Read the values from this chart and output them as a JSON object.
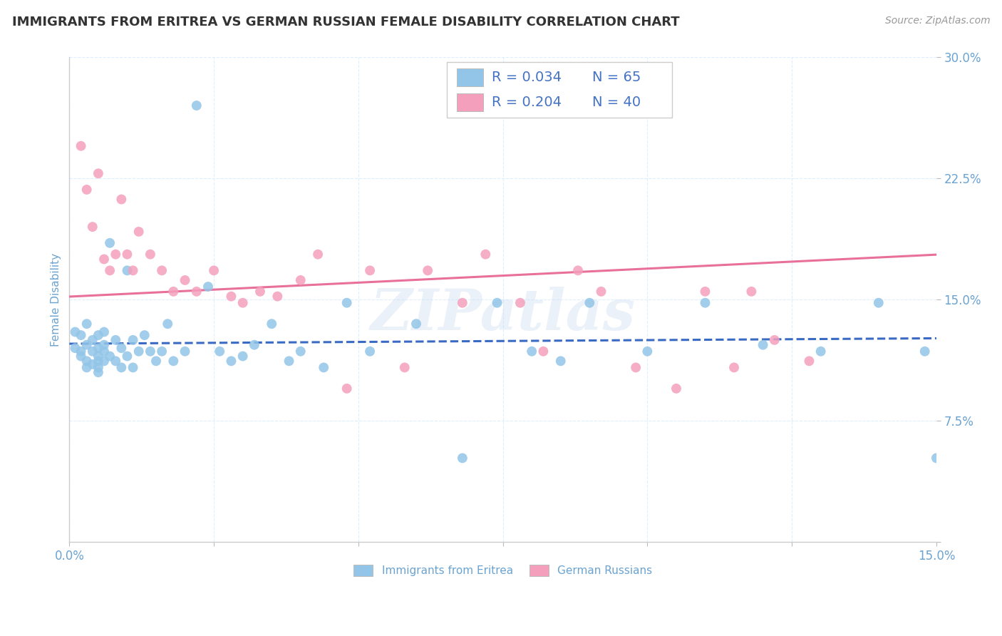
{
  "title": "IMMIGRANTS FROM ERITREA VS GERMAN RUSSIAN FEMALE DISABILITY CORRELATION CHART",
  "source": "Source: ZipAtlas.com",
  "ylabel": "Female Disability",
  "xlim": [
    0.0,
    0.15
  ],
  "ylim": [
    0.0,
    0.3
  ],
  "xticks": [
    0.0,
    0.025,
    0.05,
    0.075,
    0.1,
    0.125,
    0.15
  ],
  "xticklabels": [
    "0.0%",
    "",
    "",
    "",
    "",
    "",
    "15.0%"
  ],
  "yticks": [
    0.0,
    0.075,
    0.15,
    0.225,
    0.3
  ],
  "yticklabels": [
    "",
    "7.5%",
    "15.0%",
    "22.5%",
    "30.0%"
  ],
  "watermark": "ZIPatlas",
  "series1_color": "#92C5E8",
  "series2_color": "#F4A0BC",
  "series1_label": "Immigrants from Eritrea",
  "series2_label": "German Russians",
  "R1": 0.034,
  "N1": 65,
  "R2": 0.204,
  "N2": 40,
  "line1_color": "#3A6BC4",
  "line2_color": "#E8709A",
  "legend_color": "#4472C4",
  "title_color": "#333333",
  "tick_color": "#6BA3D0",
  "background_color": "#FFFFFF",
  "grid_color": "#DDEEFF",
  "series1_x": [
    0.001,
    0.001,
    0.002,
    0.002,
    0.002,
    0.003,
    0.003,
    0.003,
    0.003,
    0.004,
    0.004,
    0.004,
    0.005,
    0.005,
    0.005,
    0.005,
    0.005,
    0.005,
    0.006,
    0.006,
    0.006,
    0.006,
    0.007,
    0.007,
    0.008,
    0.008,
    0.009,
    0.009,
    0.01,
    0.01,
    0.011,
    0.011,
    0.012,
    0.013,
    0.014,
    0.015,
    0.016,
    0.017,
    0.018,
    0.02,
    0.022,
    0.024,
    0.026,
    0.028,
    0.03,
    0.032,
    0.035,
    0.038,
    0.04,
    0.044,
    0.048,
    0.052,
    0.06,
    0.068,
    0.074,
    0.08,
    0.085,
    0.09,
    0.1,
    0.11,
    0.12,
    0.13,
    0.14,
    0.148,
    0.15
  ],
  "series1_y": [
    0.13,
    0.12,
    0.128,
    0.118,
    0.115,
    0.135,
    0.122,
    0.112,
    0.108,
    0.125,
    0.118,
    0.11,
    0.128,
    0.12,
    0.115,
    0.112,
    0.108,
    0.105,
    0.13,
    0.122,
    0.118,
    0.112,
    0.185,
    0.115,
    0.125,
    0.112,
    0.12,
    0.108,
    0.168,
    0.115,
    0.125,
    0.108,
    0.118,
    0.128,
    0.118,
    0.112,
    0.118,
    0.135,
    0.112,
    0.118,
    0.27,
    0.158,
    0.118,
    0.112,
    0.115,
    0.122,
    0.135,
    0.112,
    0.118,
    0.108,
    0.148,
    0.118,
    0.135,
    0.052,
    0.148,
    0.118,
    0.112,
    0.148,
    0.118,
    0.148,
    0.122,
    0.118,
    0.148,
    0.118,
    0.052
  ],
  "series2_x": [
    0.002,
    0.003,
    0.004,
    0.005,
    0.006,
    0.007,
    0.008,
    0.009,
    0.01,
    0.011,
    0.012,
    0.014,
    0.016,
    0.018,
    0.02,
    0.022,
    0.025,
    0.028,
    0.03,
    0.033,
    0.036,
    0.04,
    0.043,
    0.048,
    0.052,
    0.058,
    0.062,
    0.068,
    0.072,
    0.078,
    0.082,
    0.088,
    0.092,
    0.098,
    0.105,
    0.11,
    0.115,
    0.118,
    0.122,
    0.128
  ],
  "series2_y": [
    0.245,
    0.218,
    0.195,
    0.228,
    0.175,
    0.168,
    0.178,
    0.212,
    0.178,
    0.168,
    0.192,
    0.178,
    0.168,
    0.155,
    0.162,
    0.155,
    0.168,
    0.152,
    0.148,
    0.155,
    0.152,
    0.162,
    0.178,
    0.095,
    0.168,
    0.108,
    0.168,
    0.148,
    0.178,
    0.148,
    0.118,
    0.168,
    0.155,
    0.108,
    0.095,
    0.155,
    0.108,
    0.155,
    0.125,
    0.112
  ]
}
